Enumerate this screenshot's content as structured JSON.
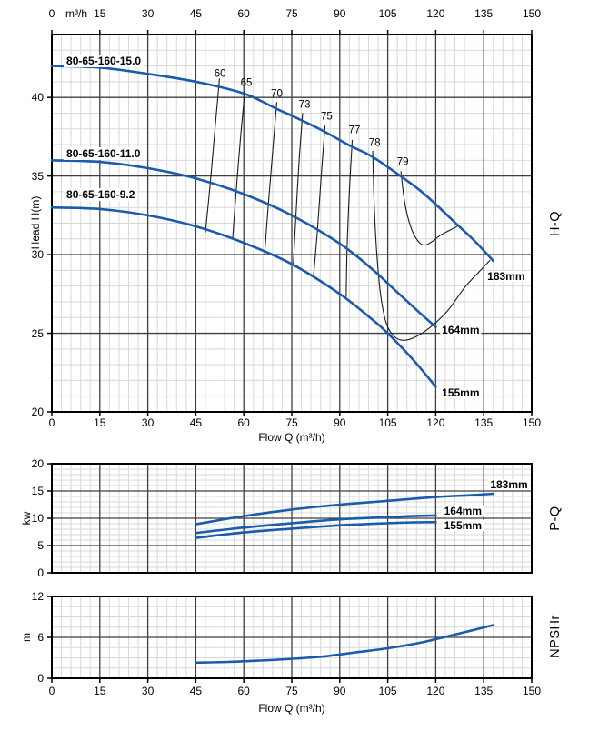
{
  "colors": {
    "curve_blue": "#1a5cab",
    "grid_major": "#3f3f3f",
    "grid_minor": "#d9d9d9",
    "frame": "#000000",
    "efficiency_line": "#1c1c1c",
    "text": "#000000",
    "background": "#ffffff"
  },
  "flow_axis": {
    "unit_top": "m³/h",
    "label_bottom": "Flow Q (m³/h)",
    "min": 0,
    "max": 150,
    "major_step": 15,
    "minor_step": 3,
    "tick_labels": [
      "0",
      "15",
      "30",
      "45",
      "60",
      "75",
      "90",
      "105",
      "120",
      "135",
      "150"
    ]
  },
  "chart_data": [
    {
      "id": "hq",
      "type": "line",
      "side_label": "H-Q",
      "ylabel": "Head H(m)",
      "y": {
        "min": 20,
        "max": 44,
        "major_step": 5,
        "minor_step": 1,
        "tick_values": [
          20,
          25,
          30,
          35,
          40
        ]
      },
      "series": [
        {
          "name": "183mm",
          "model": "80-65-160-15.0",
          "points": [
            [
              0,
              42
            ],
            [
              15,
              41.9
            ],
            [
              30,
              41.5
            ],
            [
              45,
              41.0
            ],
            [
              60,
              40.25
            ],
            [
              70,
              39.3
            ],
            [
              78,
              38.55
            ],
            [
              85,
              37.85
            ],
            [
              93,
              36.95
            ],
            [
              100,
              36.25
            ],
            [
              109,
              35.0
            ],
            [
              115,
              34.1
            ],
            [
              120,
              33.2
            ],
            [
              127,
              31.85
            ],
            [
              132,
              30.9
            ],
            [
              138,
              29.6
            ]
          ]
        },
        {
          "name": "164mm",
          "model": "80-65-160-11.0",
          "points": [
            [
              0,
              36
            ],
            [
              15,
              35.9
            ],
            [
              30,
              35.5
            ],
            [
              45,
              34.85
            ],
            [
              60,
              33.85
            ],
            [
              75,
              32.5
            ],
            [
              90,
              30.7
            ],
            [
              100,
              29.1
            ],
            [
              108,
              27.6
            ],
            [
              115,
              26.3
            ],
            [
              120,
              25.4
            ]
          ]
        },
        {
          "name": "155mm",
          "model": "80-65-160-9.2",
          "points": [
            [
              0,
              33
            ],
            [
              15,
              32.9
            ],
            [
              30,
              32.5
            ],
            [
              45,
              31.8
            ],
            [
              60,
              30.75
            ],
            [
              75,
              29.4
            ],
            [
              90,
              27.5
            ],
            [
              100,
              25.9
            ],
            [
              105,
              25.0
            ],
            [
              113,
              23.3
            ],
            [
              120,
              21.6
            ]
          ]
        }
      ],
      "efficiency_lines": [
        {
          "label": "60",
          "label_at": [
            52.6,
            41.45
          ],
          "points": [
            [
              52.4,
              41.2
            ],
            [
              51,
              38
            ],
            [
              49.5,
              34.5
            ],
            [
              48,
              31.4
            ]
          ]
        },
        {
          "label": "65",
          "label_at": [
            60.8,
            40.85
          ],
          "points": [
            [
              60.4,
              40.55
            ],
            [
              59,
              37.5
            ],
            [
              57.6,
              34
            ],
            [
              56.5,
              31.0
            ]
          ]
        },
        {
          "label": "70",
          "label_at": [
            70.3,
            40.2
          ],
          "points": [
            [
              70.3,
              39.7
            ],
            [
              69,
              36.5
            ],
            [
              67.6,
              33
            ],
            [
              66.5,
              30.0
            ]
          ]
        },
        {
          "label": "73",
          "label_at": [
            79.0,
            39.5
          ],
          "points": [
            [
              78.4,
              39.0
            ],
            [
              77.3,
              36
            ],
            [
              76.3,
              32.5
            ],
            [
              75.5,
              29.4
            ]
          ]
        },
        {
          "label": "75",
          "label_at": [
            85.9,
            38.75
          ],
          "points": [
            [
              85.4,
              38.2
            ],
            [
              84.2,
              35
            ],
            [
              83,
              31.5
            ],
            [
              81.8,
              28.6
            ]
          ]
        },
        {
          "label": "77",
          "label_at": [
            94.6,
            37.85
          ],
          "points": [
            [
              93.9,
              37.3
            ],
            [
              93,
              34
            ],
            [
              92.3,
              30.5
            ],
            [
              92,
              27.3
            ]
          ]
        },
        {
          "label": "78",
          "label_at": [
            100.9,
            37.05
          ],
          "points": [
            [
              100.3,
              36.6
            ],
            [
              100.8,
              33
            ],
            [
              101.6,
              30
            ],
            [
              102.8,
              27.4
            ],
            [
              104.6,
              25.6
            ],
            [
              107,
              24.8
            ],
            [
              110,
              24.55
            ],
            [
              114,
              24.8
            ],
            [
              119,
              25.5
            ],
            [
              124,
              26.5
            ],
            [
              129,
              27.9
            ],
            [
              133.5,
              28.9
            ],
            [
              137,
              29.65
            ]
          ]
        },
        {
          "label": "79",
          "label_at": [
            109.7,
            35.85
          ],
          "points": [
            [
              109.1,
              35.3
            ],
            [
              110.4,
              33.2
            ],
            [
              112.3,
              31.7
            ],
            [
              114.5,
              30.85
            ],
            [
              116.5,
              30.6
            ],
            [
              119,
              30.85
            ],
            [
              121.6,
              31.25
            ],
            [
              124.4,
              31.55
            ],
            [
              126.7,
              31.8
            ]
          ]
        }
      ],
      "annotations": [
        {
          "text": "80-65-160-15.0",
          "at": [
            3.7,
            42.35
          ],
          "cls": "model",
          "name": "model-label-15-0"
        },
        {
          "text": "80-65-160-11.0",
          "at": [
            3.7,
            36.45
          ],
          "cls": "model",
          "name": "model-label-11-0"
        },
        {
          "text": "80-65-160-9.2",
          "at": [
            3.7,
            33.8
          ],
          "cls": "model",
          "name": "model-label-9-2"
        },
        {
          "text": "183mm",
          "at": [
            142.0,
            28.6
          ],
          "cls": "imp",
          "name": "impeller-label-183-hq"
        },
        {
          "text": "164mm",
          "at": [
            127.8,
            25.2
          ],
          "cls": "imp",
          "name": "impeller-label-164-hq"
        },
        {
          "text": "155mm",
          "at": [
            127.8,
            21.2
          ],
          "cls": "imp",
          "name": "impeller-label-155-hq"
        }
      ]
    },
    {
      "id": "pq",
      "type": "line",
      "side_label": "P-Q",
      "ylabel": "kw",
      "y": {
        "min": 0,
        "max": 20,
        "major_step": 5,
        "minor_step": 1,
        "tick_values": [
          0,
          5,
          10,
          15,
          20
        ]
      },
      "series": [
        {
          "name": "183mm",
          "points": [
            [
              45,
              8.9
            ],
            [
              60,
              10.4
            ],
            [
              75,
              11.6
            ],
            [
              90,
              12.5
            ],
            [
              105,
              13.2
            ],
            [
              120,
              13.9
            ],
            [
              130,
              14.2
            ],
            [
              138,
              14.5
            ]
          ]
        },
        {
          "name": "164mm",
          "points": [
            [
              45,
              7.3
            ],
            [
              60,
              8.3
            ],
            [
              75,
              9.1
            ],
            [
              90,
              9.8
            ],
            [
              105,
              10.2
            ],
            [
              113,
              10.4
            ],
            [
              120,
              10.5
            ]
          ]
        },
        {
          "name": "155mm",
          "points": [
            [
              45,
              6.4
            ],
            [
              60,
              7.4
            ],
            [
              75,
              8.1
            ],
            [
              90,
              8.7
            ],
            [
              105,
              9.1
            ],
            [
              113,
              9.25
            ],
            [
              120,
              9.3
            ]
          ]
        }
      ],
      "efficiency_lines": [],
      "annotations": [
        {
          "text": "183mm",
          "at": [
            142.9,
            16.2
          ],
          "cls": "imp",
          "name": "impeller-label-183-pq"
        },
        {
          "text": "164mm",
          "at": [
            128.5,
            11.3
          ],
          "cls": "imp",
          "name": "impeller-label-164-pq"
        },
        {
          "text": "155mm",
          "at": [
            128.5,
            8.7
          ],
          "cls": "imp",
          "name": "impeller-label-155-pq"
        }
      ]
    },
    {
      "id": "npshr",
      "type": "line",
      "side_label": "NPSHr",
      "ylabel": "m",
      "y": {
        "min": 0,
        "max": 12,
        "major_step": 6,
        "minor_step": 1.5,
        "tick_values": [
          0,
          6,
          12
        ]
      },
      "series": [
        {
          "name": "NPSHr",
          "points": [
            [
              45,
              2.3
            ],
            [
              55,
              2.4
            ],
            [
              65,
              2.6
            ],
            [
              75,
              2.85
            ],
            [
              85,
              3.2
            ],
            [
              95,
              3.8
            ],
            [
              105,
              4.4
            ],
            [
              115,
              5.2
            ],
            [
              125,
              6.3
            ],
            [
              132,
              7.1
            ],
            [
              138,
              7.8
            ]
          ]
        }
      ],
      "efficiency_lines": [],
      "annotations": []
    }
  ]
}
